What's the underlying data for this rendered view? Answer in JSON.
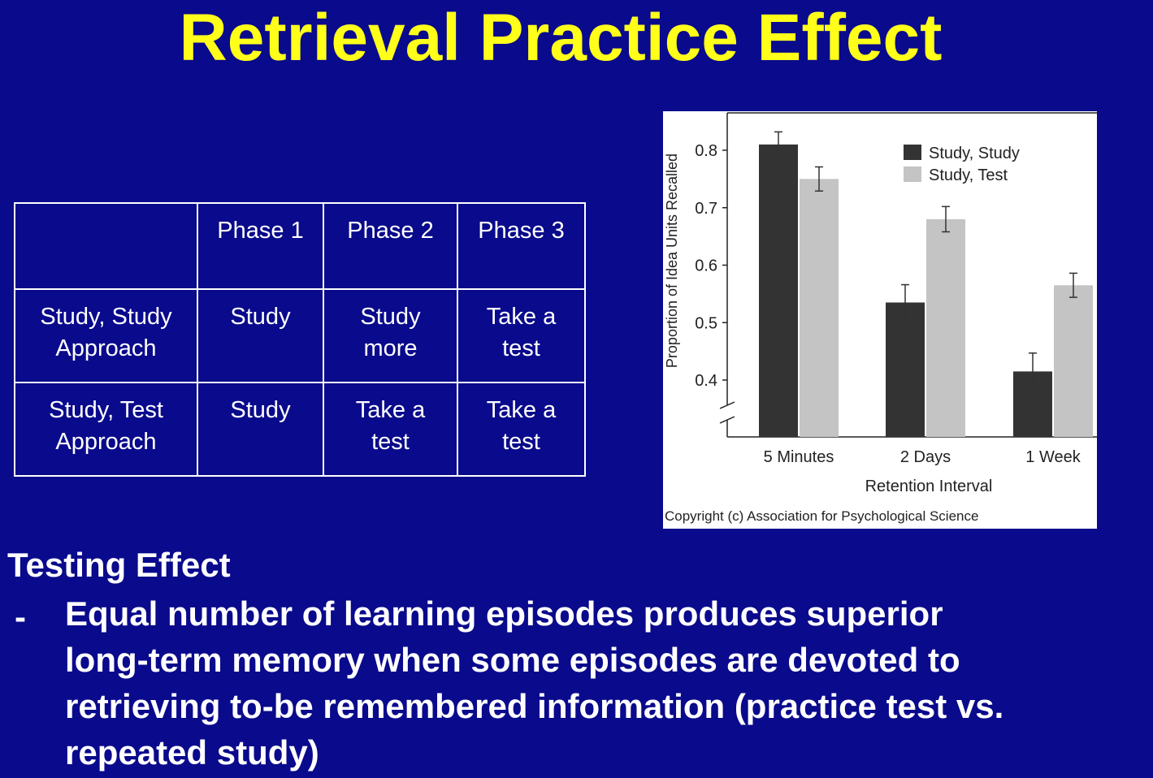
{
  "slide": {
    "title": "Retrieval Practice Effect"
  },
  "table": {
    "headers": [
      "",
      "Phase 1",
      "Phase 2",
      "Phase 3"
    ],
    "rows": [
      {
        "label_lines": [
          "Study, Study",
          "Approach"
        ],
        "cells": [
          [
            "Study"
          ],
          [
            "Study",
            "more"
          ],
          [
            "Take a",
            "test"
          ]
        ]
      },
      {
        "label_lines": [
          "Study, Test",
          "Approach"
        ],
        "cells": [
          [
            "Study"
          ],
          [
            "Take a",
            "test"
          ],
          [
            "Take a",
            "test"
          ]
        ]
      }
    ]
  },
  "chart_data": {
    "type": "bar",
    "categories": [
      "5 Minutes",
      "2 Days",
      "1 Week"
    ],
    "series": [
      {
        "name": "Study, Study",
        "values": [
          0.81,
          0.535,
          0.415
        ],
        "errors": [
          0.022,
          0.031,
          0.032
        ]
      },
      {
        "name": "Study, Test",
        "values": [
          0.75,
          0.68,
          0.565
        ],
        "errors": [
          0.021,
          0.022,
          0.021
        ]
      }
    ],
    "xlabel": "Retention Interval",
    "ylabel": "Proportion of Idea Units Recalled",
    "yticks": [
      0.4,
      0.5,
      0.6,
      0.7,
      0.8
    ],
    "ylim": [
      0.4,
      0.8
    ],
    "axis_break": true,
    "legend_position": "top-right",
    "grid": false,
    "colors": [
      "#333333",
      "#c4c4c4"
    ],
    "copyright": "Copyright (c) Association for Psychological Science"
  },
  "text": {
    "heading": "Testing Effect",
    "bullet_dash": "-",
    "bullet_lines": [
      "Equal number of learning episodes produces superior",
      "long-term memory when some episodes are devoted to",
      "retrieving to-be remembered information (practice test vs.",
      "repeated study)"
    ]
  }
}
